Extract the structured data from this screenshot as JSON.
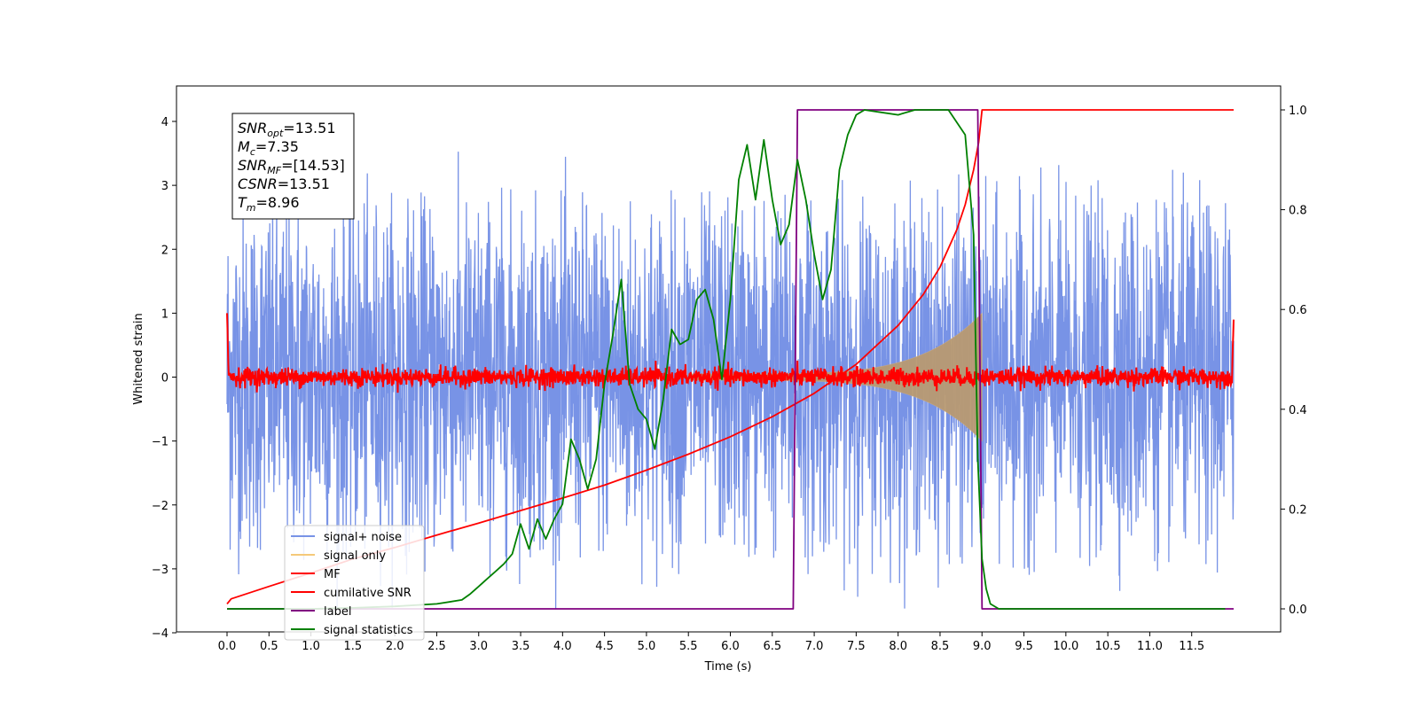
{
  "chart_data": {
    "type": "line",
    "xlabel": "Time (s)",
    "ylabel": "Whitened strain",
    "xlim": [
      -0.55,
      12.6
    ],
    "ylim": [
      -4.0,
      4.55
    ],
    "y2lim": [
      -0.045,
      1.045
    ],
    "x_ticks": [
      "0.0",
      "0.5",
      "1.0",
      "1.5",
      "2.0",
      "2.5",
      "3.0",
      "3.5",
      "4.0",
      "4.5",
      "5.0",
      "5.5",
      "6.0",
      "6.5",
      "7.0",
      "7.5",
      "8.0",
      "8.5",
      "9.0",
      "9.5",
      "10.0",
      "10.5",
      "11.0",
      "11.5"
    ],
    "y_ticks": [
      "−4",
      "−3",
      "−2",
      "−1",
      "0",
      "1",
      "2",
      "3",
      "4"
    ],
    "y2_ticks": [
      "0.0",
      "0.2",
      "0.4",
      "0.6",
      "0.8",
      "1.0"
    ],
    "grid": false,
    "legend_position": "lower-left",
    "annotation": {
      "lines": [
        {
          "main": "SNR",
          "sub": "opt",
          "value": "=13.51"
        },
        {
          "main": "M",
          "sub": "c",
          "value": "=7.35"
        },
        {
          "main": "SNR",
          "sub": "MF",
          "value": "=[14.53]"
        },
        {
          "main": "CSNR",
          "sub": "",
          "value": "=13.51"
        },
        {
          "main": "T",
          "sub": "m",
          "value": "=8.96"
        }
      ]
    },
    "series": [
      {
        "name": "signal+ noise",
        "color": "#7893e6",
        "axis": "left",
        "kind": "noise",
        "x_range": [
          0.0,
          12.0
        ],
        "amplitude": 1.6,
        "envelope_max": 4.18,
        "envelope_min": -3.62
      },
      {
        "name": "signal only",
        "color": "#f5c97a",
        "axis": "left",
        "kind": "chirp",
        "x_range": [
          5.5,
          9.0
        ],
        "peak_amplitude": 0.95
      },
      {
        "name": "MF",
        "color": "#ff0000",
        "axis": "left",
        "kind": "noise",
        "x_range": [
          0.0,
          12.0
        ],
        "amplitude": 0.12,
        "start_value": 1.0,
        "end_value": 0.9
      },
      {
        "name": "cumilative SNR",
        "color": "#ff0000",
        "axis": "right",
        "x": [
          0.0,
          0.05,
          0.5,
          1.0,
          1.5,
          2.0,
          2.5,
          3.0,
          3.5,
          4.0,
          4.5,
          5.0,
          5.5,
          6.0,
          6.5,
          7.0,
          7.5,
          8.0,
          8.3,
          8.5,
          8.7,
          8.8,
          8.9,
          8.96,
          9.0,
          12.0
        ],
        "y": [
          0.01,
          0.02,
          0.045,
          0.072,
          0.1,
          0.123,
          0.148,
          0.172,
          0.197,
          0.222,
          0.248,
          0.278,
          0.31,
          0.345,
          0.385,
          0.432,
          0.49,
          0.568,
          0.63,
          0.685,
          0.76,
          0.81,
          0.88,
          0.935,
          1.0,
          1.0
        ]
      },
      {
        "name": "label",
        "color": "#800080",
        "axis": "right",
        "x": [
          0.0,
          6.75,
          6.8,
          8.95,
          9.0,
          12.0
        ],
        "y": [
          0.0,
          0.0,
          1.0,
          1.0,
          0.0,
          0.0
        ]
      },
      {
        "name": "signal statistics",
        "color": "#008000",
        "axis": "right",
        "x": [
          0.0,
          0.5,
          1.0,
          1.5,
          2.0,
          2.5,
          2.8,
          2.9,
          3.0,
          3.1,
          3.2,
          3.3,
          3.4,
          3.5,
          3.6,
          3.7,
          3.8,
          3.9,
          4.0,
          4.1,
          4.2,
          4.3,
          4.4,
          4.5,
          4.6,
          4.7,
          4.8,
          4.9,
          5.0,
          5.1,
          5.2,
          5.3,
          5.4,
          5.5,
          5.6,
          5.7,
          5.8,
          5.9,
          6.0,
          6.1,
          6.2,
          6.3,
          6.4,
          6.5,
          6.6,
          6.7,
          6.8,
          6.9,
          7.0,
          7.1,
          7.2,
          7.3,
          7.4,
          7.5,
          7.6,
          7.8,
          8.0,
          8.2,
          8.4,
          8.6,
          8.8,
          8.9,
          8.95,
          9.0,
          9.05,
          9.1,
          9.2,
          9.5,
          10.0,
          11.0,
          11.5,
          11.9
        ],
        "y": [
          0.0,
          0.0,
          0.0,
          0.002,
          0.005,
          0.01,
          0.018,
          0.03,
          0.045,
          0.06,
          0.075,
          0.09,
          0.11,
          0.17,
          0.12,
          0.18,
          0.14,
          0.18,
          0.21,
          0.34,
          0.3,
          0.24,
          0.3,
          0.45,
          0.55,
          0.66,
          0.45,
          0.4,
          0.38,
          0.32,
          0.42,
          0.56,
          0.53,
          0.54,
          0.62,
          0.64,
          0.58,
          0.46,
          0.62,
          0.86,
          0.93,
          0.82,
          0.94,
          0.82,
          0.73,
          0.77,
          0.9,
          0.82,
          0.71,
          0.62,
          0.68,
          0.88,
          0.95,
          0.99,
          1.0,
          0.995,
          0.99,
          1.0,
          1.0,
          1.0,
          0.95,
          0.75,
          0.3,
          0.1,
          0.04,
          0.01,
          0.0,
          0.0,
          0.0,
          0.0,
          0.0,
          0.0
        ]
      }
    ]
  }
}
